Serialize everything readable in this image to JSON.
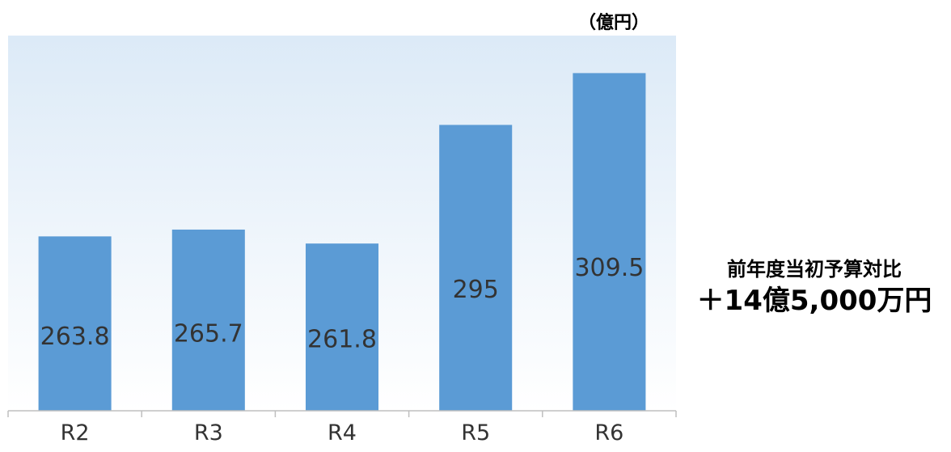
{
  "chart_data": {
    "type": "bar",
    "unit_label": "（億円）",
    "categories": [
      "R2",
      "R3",
      "R4",
      "R5",
      "R6"
    ],
    "values": [
      263.8,
      265.7,
      261.8,
      295,
      309.5
    ],
    "value_labels": [
      "263.8",
      "265.7",
      "261.8",
      "295",
      "309.5"
    ],
    "xlabel": "",
    "ylabel": "",
    "ylim": [
      215,
      320
    ],
    "grid": false,
    "legend": false,
    "colors": {
      "bar": "#5B9BD5",
      "plot_bg_top": "#DCEAF7",
      "plot_bg_bottom": "#FFFFFF",
      "axis": "#BFBFBF",
      "label_text": "#333333"
    }
  },
  "annotation": {
    "line1": "前年度当初予算対比",
    "line2": "＋14億5,000万円"
  }
}
